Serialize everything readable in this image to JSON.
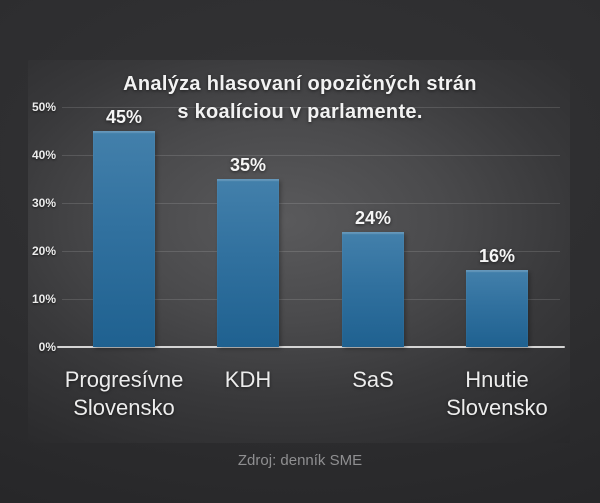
{
  "chart_data": {
    "type": "bar",
    "title": "Analýza hlasovaní opozičných strán s koalíciou v parlamente.",
    "title_lines": [
      "Analýza hlasovaní opozičných strán",
      "s koalíciou v parlamente."
    ],
    "categories": [
      "Progresívne Slovensko",
      "KDH",
      "SaS",
      "Hnutie Slovensko"
    ],
    "values": [
      45,
      35,
      24,
      16
    ],
    "value_labels": [
      "45%",
      "35%",
      "24%",
      "16%"
    ],
    "y_ticks": [
      "50%",
      "40%",
      "30%",
      "20%",
      "10%",
      "0%"
    ],
    "ylim": [
      0,
      50
    ],
    "xlabel": "",
    "ylabel": "",
    "grid": true,
    "legend": "none",
    "bar_color_top": "#4380ab",
    "bar_color_mid": "#31719f",
    "bar_color_bottom": "#1f6190",
    "axis_line_color": "#d4d4d4",
    "background_color": "#2d2d2f",
    "panel_color": "#4a4a4c",
    "text_color": "#f2f2f2"
  },
  "footer": {
    "source": "Zdroj: denník SME"
  }
}
